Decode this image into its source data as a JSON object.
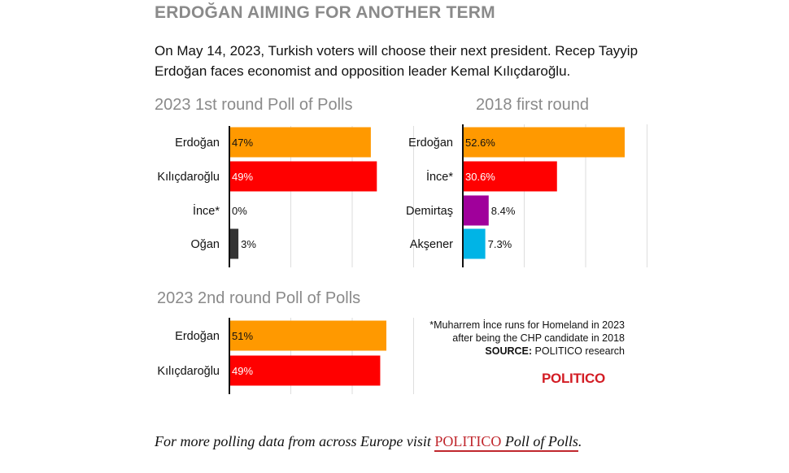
{
  "headline": "ERDOĞAN AIMING FOR ANOTHER TERM",
  "intro": "On May 14, 2023, Turkish voters will choose their next president. Recep Tayyip Erdoğan faces economist and opposition leader Kemal Kılıçdaroğlu.",
  "footnote": {
    "line1": "*Muharrem İnce runs for Homeland in 2023",
    "line2": "after being the CHP candidate in 2018",
    "source_label": "SOURCE:",
    "source_text": " POLITICO research"
  },
  "logo": "POLITICO",
  "bottom": {
    "prefix": "For more polling data from across Europe visit ",
    "link_brand": "POLITICO",
    "link_rest": " Poll of Polls",
    "suffix": "."
  },
  "chart_data": [
    {
      "id": "first-round-2023",
      "type": "bar",
      "title": "2023 1st round Poll of Polls",
      "categories": [
        "Erdoğan",
        "Kılıçdaroğlu",
        "İnce*",
        "Oğan"
      ],
      "values": [
        47,
        49,
        0,
        3
      ],
      "labels": [
        "47%",
        "49%",
        "0%",
        "3%"
      ],
      "colors": [
        "#ff9900",
        "#ff0000",
        "#333333",
        "#333333"
      ],
      "xlim": [
        0,
        50
      ],
      "grid": true
    },
    {
      "id": "first-round-2018",
      "type": "bar",
      "title": "2018 first round",
      "categories": [
        "Erdoğan",
        "İnce*",
        "Demirtaş",
        "Akşener"
      ],
      "values": [
        52.6,
        30.6,
        8.4,
        7.3
      ],
      "labels": [
        "52.6%",
        "30.6%",
        "8.4%",
        "7.3%"
      ],
      "colors": [
        "#ff9900",
        "#ff0000",
        "#a0009b",
        "#00b4e6"
      ],
      "xlim": [
        0,
        52.6
      ],
      "grid": true
    },
    {
      "id": "second-round-2023",
      "type": "bar",
      "title": "2023 2nd round Poll of Polls",
      "categories": [
        "Erdoğan",
        "Kılıçdaroğlu"
      ],
      "values": [
        51,
        49
      ],
      "labels": [
        "51%",
        "49%"
      ],
      "colors": [
        "#ff9900",
        "#ff0000"
      ],
      "xlim": [
        0,
        51
      ],
      "grid": true
    }
  ]
}
